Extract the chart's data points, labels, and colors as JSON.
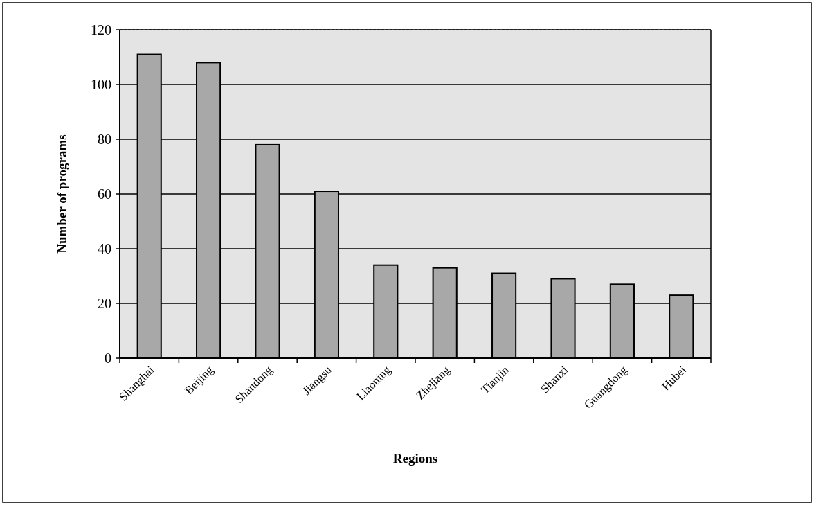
{
  "chart_data": {
    "type": "bar",
    "xlabel": "Regions",
    "ylabel": "Number of programs",
    "categories": [
      "Shanghai",
      "Beijing",
      "Shandong",
      "Jiangsu",
      "Liaoning",
      "Zhejiang",
      "Tianjin",
      "Shanxi",
      "Guangdong",
      "Hubei"
    ],
    "values": [
      111,
      108,
      78,
      61,
      34,
      33,
      31,
      29,
      27,
      23
    ],
    "color": "#a8a8a8",
    "ylim": [
      0,
      120
    ],
    "yticks": [
      0,
      20,
      40,
      60,
      80,
      100,
      120
    ],
    "grid": "y"
  }
}
